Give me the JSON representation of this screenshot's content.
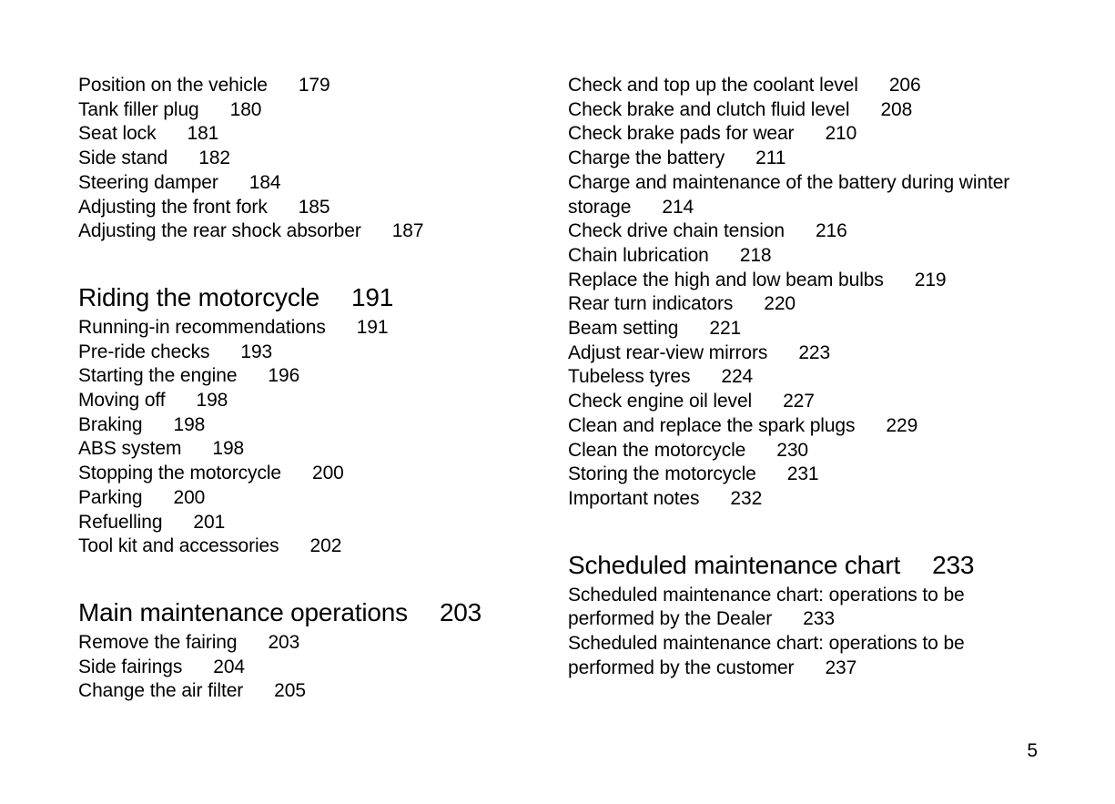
{
  "page_number": "5",
  "columns": [
    {
      "name": "left",
      "sections": [
        {
          "items": [
            {
              "label": "Position on the vehicle",
              "page": "179"
            },
            {
              "label": "Tank filler plug",
              "page": "180"
            },
            {
              "label": "Seat lock",
              "page": "181"
            },
            {
              "label": "Side stand",
              "page": "182"
            },
            {
              "label": "Steering damper",
              "page": "184"
            },
            {
              "label": "Adjusting the front fork",
              "page": "185"
            },
            {
              "label": "Adjusting the rear shock absorber",
              "page": "187"
            }
          ]
        },
        {
          "heading": {
            "label": "Riding the motorcycle",
            "page": "191"
          },
          "items": [
            {
              "label": "Running-in recommendations",
              "page": "191"
            },
            {
              "label": "Pre-ride checks",
              "page": "193"
            },
            {
              "label": "Starting the engine",
              "page": "196"
            },
            {
              "label": "Moving off",
              "page": "198"
            },
            {
              "label": "Braking",
              "page": "198"
            },
            {
              "label": "ABS system",
              "page": "198"
            },
            {
              "label": "Stopping the motorcycle",
              "page": "200"
            },
            {
              "label": "Parking",
              "page": "200"
            },
            {
              "label": "Refuelling",
              "page": "201"
            },
            {
              "label": "Tool kit and accessories",
              "page": "202"
            }
          ]
        },
        {
          "heading": {
            "label": "Main maintenance operations",
            "page": "203"
          },
          "items": [
            {
              "label": "Remove the fairing",
              "page": "203"
            },
            {
              "label": "Side fairings",
              "page": "204"
            },
            {
              "label": "Change the air filter",
              "page": "205"
            }
          ]
        }
      ]
    },
    {
      "name": "right",
      "sections": [
        {
          "items": [
            {
              "label": "Check and top up the coolant level",
              "page": "206"
            },
            {
              "label": "Check brake and clutch fluid level",
              "page": "208"
            },
            {
              "label": "Check brake pads for wear",
              "page": "210"
            },
            {
              "label": "Charge the battery",
              "page": "211"
            },
            {
              "label": "Charge and maintenance of the battery during winter storage",
              "page": "214"
            },
            {
              "label": "Check drive chain tension",
              "page": "216"
            },
            {
              "label": "Chain lubrication",
              "page": "218"
            },
            {
              "label": "Replace the high and low beam bulbs",
              "page": "219"
            },
            {
              "label": "Rear turn indicators",
              "page": "220"
            },
            {
              "label": "Beam setting",
              "page": "221"
            },
            {
              "label": "Adjust rear-view mirrors",
              "page": "223"
            },
            {
              "label": "Tubeless tyres",
              "page": "224"
            },
            {
              "label": "Check engine oil level",
              "page": "227"
            },
            {
              "label": "Clean and replace the spark plugs",
              "page": "229"
            },
            {
              "label": "Clean the motorcycle",
              "page": "230"
            },
            {
              "label": "Storing the motorcycle",
              "page": "231"
            },
            {
              "label": "Important notes",
              "page": "232"
            }
          ]
        },
        {
          "heading": {
            "label": "Scheduled maintenance chart",
            "page": "233"
          },
          "items": [
            {
              "label": "Scheduled maintenance chart: operations to be performed by the Dealer",
              "page": "233"
            },
            {
              "label": "Scheduled maintenance chart: operations to be performed by the customer",
              "page": "237"
            }
          ]
        }
      ]
    }
  ]
}
